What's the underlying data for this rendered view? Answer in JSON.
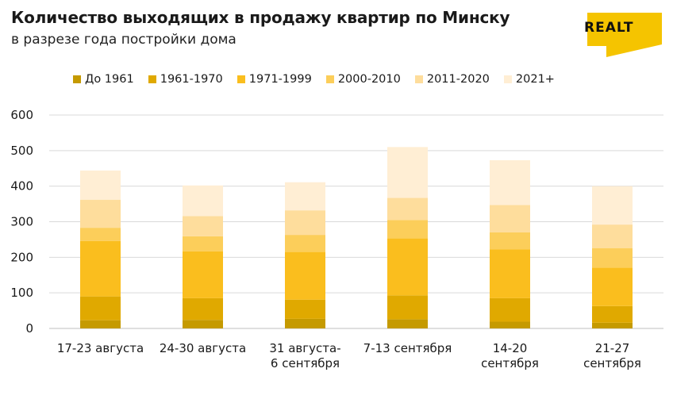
{
  "header": {
    "title": "Количество выходящих в продажу квартир по Минску",
    "subtitle": "в разрезе года постройки дома"
  },
  "logo": {
    "text": "REALT",
    "color": "#F5C400"
  },
  "colors": {
    "series": [
      "#C59A00",
      "#E0A900",
      "#FABE1E",
      "#FCCE5A",
      "#FEDD9C",
      "#FFEED4"
    ],
    "grid": "#d9d9d9",
    "axis": "#bfbfbf"
  },
  "chart_data": {
    "type": "bar",
    "stacked": true,
    "title": "Количество выходящих в продажу квартир по Минску",
    "subtitle": "в разрезе года постройки дома",
    "categories": [
      [
        "17-23 августа"
      ],
      [
        "24-30 августа"
      ],
      [
        "31 августа-",
        "6 сентября"
      ],
      [
        "7-13 сентября"
      ],
      [
        "14-20",
        "сентября"
      ],
      [
        "21-27",
        "сентября"
      ]
    ],
    "series": [
      {
        "name": "До 1961",
        "values": [
          23,
          24,
          27,
          26,
          19,
          16
        ]
      },
      {
        "name": "1961-1970",
        "values": [
          67,
          61,
          54,
          67,
          66,
          47
        ]
      },
      {
        "name": "1971-1999",
        "values": [
          156,
          132,
          134,
          160,
          137,
          108
        ]
      },
      {
        "name": "2000-2010",
        "values": [
          37,
          42,
          48,
          52,
          48,
          55
        ]
      },
      {
        "name": "2011-2020",
        "values": [
          79,
          57,
          69,
          62,
          77,
          66
        ]
      },
      {
        "name": "2021+",
        "values": [
          82,
          86,
          79,
          143,
          126,
          108
        ]
      }
    ],
    "ylim": [
      0,
      600
    ],
    "yticks": [
      0,
      100,
      200,
      300,
      400,
      500,
      600
    ],
    "grid": true,
    "legend_position": "top"
  }
}
